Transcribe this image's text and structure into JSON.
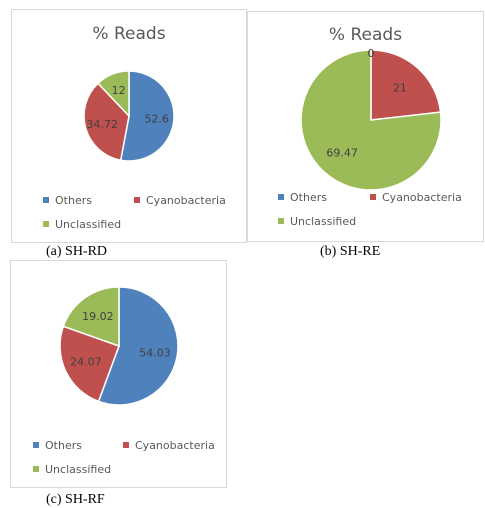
{
  "colors": {
    "Others": "#4f81bd",
    "Cyanobacteria": "#c0504d",
    "Unclassified": "#9bbb59"
  },
  "chart_data": [
    {
      "type": "pie",
      "title": "% Reads",
      "caption": "(a) SH-RD",
      "categories": [
        "Others",
        "Cyanobacteria",
        "Unclassified"
      ],
      "values": [
        52.6,
        34.72,
        12
      ]
    },
    {
      "type": "pie",
      "title": "% Reads",
      "caption": "(b) SH-RE",
      "categories": [
        "Others",
        "Cyanobacteria",
        "Unclassified"
      ],
      "values": [
        0,
        21,
        69.47
      ]
    },
    {
      "type": "pie",
      "title": "",
      "caption": "(c) SH-RF",
      "categories": [
        "Others",
        "Cyanobacteria",
        "Unclassified"
      ],
      "values": [
        54.03,
        24.07,
        19.02
      ]
    }
  ]
}
